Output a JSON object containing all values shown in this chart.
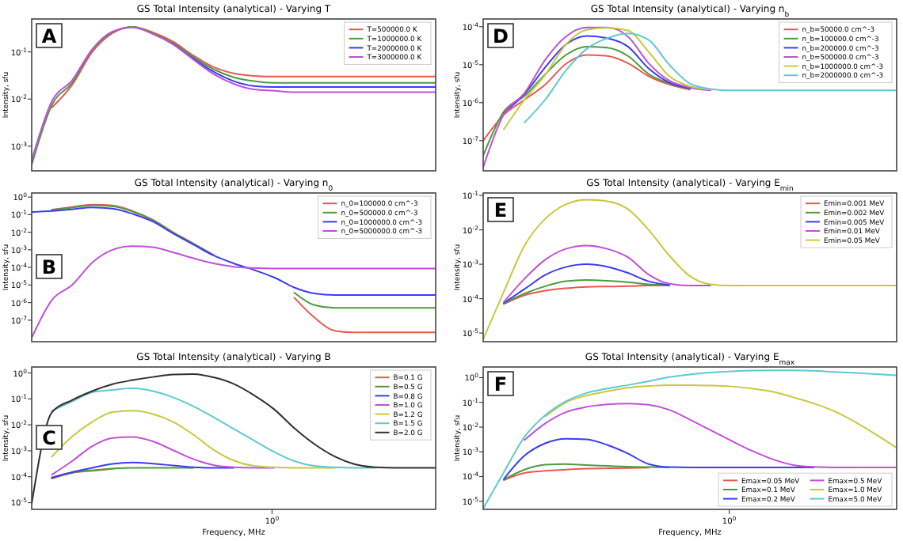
{
  "chart_data": [
    {
      "type": "line",
      "title": "GS Total Intensity (analytical) - Varying T",
      "ylabel": "Intensity, sfu",
      "annotations": [
        "A"
      ],
      "log": "y",
      "legend": "top right",
      "tick_labels": "y",
      "ylim": [
        0.0003,
        0.5
      ],
      "yticks": [
        {
          "value": 0.1,
          "label": "10$^{-1}$"
        },
        {
          "value": 0.01,
          "label": "10$^{-2}$"
        },
        {
          "value": 0.001,
          "label": "10$^{-3}$"
        }
      ],
      "categories": [
        null,
        null,
        null,
        null,
        null,
        null,
        null,
        null,
        null,
        null,
        null,
        null,
        null,
        null,
        null,
        null,
        null,
        null,
        null,
        null,
        null
      ],
      "series": [
        {
          "name": "T=500000.0 K",
          "color": "#e8584f",
          "values": [
            null,
            0.0066,
            0.02,
            0.1,
            0.25,
            0.34,
            0.26,
            0.165,
            0.084,
            0.048,
            0.035,
            0.031,
            0.03,
            0.03,
            0.03,
            0.03,
            0.03,
            0.03,
            0.03,
            0.03,
            0.03
          ]
        },
        {
          "name": "T=1000000.0 K",
          "color": "#4f9a3f",
          "values": [
            0.0004,
            0.0075,
            0.022,
            0.11,
            0.26,
            0.34,
            0.25,
            0.155,
            0.078,
            0.043,
            0.029,
            0.024,
            0.022,
            0.022,
            0.022,
            0.022,
            0.022,
            0.022,
            0.022,
            0.022,
            0.022
          ]
        },
        {
          "name": "T=2000000.0 K",
          "color": "#3c3cf0",
          "values": [
            null,
            null,
            null,
            null,
            null,
            null,
            null,
            0.148,
            0.072,
            0.038,
            0.024,
            0.019,
            0.018,
            0.018,
            0.018,
            0.018,
            0.018,
            0.018,
            0.018,
            0.018,
            0.018
          ]
        },
        {
          "name": "T=3000000.0 K",
          "color": "#c050d8",
          "values": [
            0.0005,
            0.009,
            0.025,
            0.115,
            0.27,
            0.33,
            0.24,
            0.145,
            0.069,
            0.034,
            0.021,
            0.016,
            0.015,
            0.014,
            0.014,
            0.014,
            0.014,
            0.014,
            0.014,
            0.014,
            0.014
          ]
        }
      ]
    },
    {
      "type": "line",
      "title": "GS Total Intensity (analytical) - Varying n$_{0}$",
      "ylabel": "Intensity, sfu",
      "annotations": [
        "B"
      ],
      "log": "y",
      "legend": "top right",
      "tick_labels": "y",
      "ylim": [
        6e-09,
        1.7
      ],
      "yticks": [
        {
          "value": 1,
          "label": "10$^{0}$"
        },
        {
          "value": 0.1,
          "label": "10$^{-1}$"
        },
        {
          "value": 0.01,
          "label": "10$^{-2}$"
        },
        {
          "value": 0.001,
          "label": "10$^{-3}$"
        },
        {
          "value": 0.0001,
          "label": "10$^{-4}$"
        },
        {
          "value": 1e-05,
          "label": "10$^{-5}$"
        },
        {
          "value": 1e-06,
          "label": "10$^{-6}$"
        },
        {
          "value": 1e-07,
          "label": "10$^{-7}$"
        }
      ],
      "categories": [
        null,
        null,
        null,
        null,
        null,
        null,
        null,
        null,
        null,
        null,
        null,
        null,
        null,
        null,
        null,
        null,
        null,
        null,
        null,
        null,
        null
      ],
      "series": [
        {
          "name": "n_0=100000.0 cm^-3",
          "color": "#e8584f",
          "values": [
            null,
            0.19,
            0.27,
            0.37,
            0.33,
            0.16,
            0.051,
            0.01,
            0.0023,
            0.00051,
            null,
            null,
            null,
            1.9e-06,
            1.4e-07,
            2.5e-08,
            2e-08,
            2e-08,
            2e-08,
            2e-08,
            2e-08
          ]
        },
        {
          "name": "n_0=500000.0 cm^-3",
          "color": "#4f9a3f",
          "values": [
            null,
            0.18,
            0.25,
            0.34,
            0.3,
            0.15,
            0.048,
            0.0095,
            0.0022,
            0.0005,
            null,
            null,
            null,
            3.7e-06,
            7.2e-07,
            5e-07,
            5e-07,
            5e-07,
            5e-07,
            5e-07,
            5e-07
          ]
        },
        {
          "name": "n_0=1000000.0 cm^-3",
          "color": "#3c3cf0",
          "values": [
            0.14,
            0.16,
            0.2,
            0.26,
            0.22,
            0.11,
            0.04,
            0.0085,
            0.002,
            0.00048,
            0.00017,
            7.2e-05,
            2.7e-05,
            7.2e-06,
            3.3e-06,
            2.7e-06,
            2.7e-06,
            2.7e-06,
            2.7e-06,
            2.7e-06,
            2.7e-06
          ]
        },
        {
          "name": "n_0=5000000.0 cm^-3",
          "color": "#c050d8",
          "values": [
            1e-08,
            1.4e-06,
            1e-05,
            0.00019,
            0.001,
            0.0016,
            0.0014,
            0.00072,
            0.00033,
            0.00017,
            0.00011,
            9.3e-05,
            8.7e-05,
            8.7e-05,
            8.7e-05,
            8.7e-05,
            8.7e-05,
            8.7e-05,
            8.7e-05,
            8.7e-05,
            8.7e-05
          ]
        }
      ]
    },
    {
      "type": "line",
      "title": "GS Total Intensity (analytical) - Varying B",
      "xlabel": "Frequency, MHz",
      "ylabel": "Intensity, sfu",
      "annotations": [
        "C",
        "10$^{0}$"
      ],
      "log": "y",
      "legend": "top right",
      "ylim": [
        5.5e-06,
        1.7
      ],
      "yticks": [
        {
          "value": 1,
          "label": "10$^{0}$"
        },
        {
          "value": 0.1,
          "label": "10$^{-1}$"
        },
        {
          "value": 0.01,
          "label": "10$^{-2}$"
        },
        {
          "value": 0.001,
          "label": "10$^{-3}$"
        },
        {
          "value": 0.0001,
          "label": "10$^{-4}$"
        },
        {
          "value": 1e-05,
          "label": "10$^{-5}$"
        }
      ],
      "categories": [
        null,
        null,
        null,
        null,
        null,
        null,
        null,
        null,
        null,
        null,
        null,
        null,
        null,
        null,
        null,
        null,
        null,
        null,
        null,
        null,
        null
      ],
      "series": [
        {
          "name": "B=0.1 G",
          "color": "#e8584f",
          "values": [
            null,
            8.5e-05,
            0.00014,
            0.00017,
            0.0002,
            null,
            null,
            null,
            null,
            null,
            null,
            null,
            null,
            null,
            null,
            null,
            null,
            null,
            null,
            null,
            null
          ]
        },
        {
          "name": "B=0.5 G",
          "color": "#4f9a3f",
          "values": [
            null,
            9.5e-05,
            0.000145,
            0.000175,
            0.000205,
            0.00022,
            0.00022,
            0.00022,
            0.00022,
            null,
            null,
            null,
            null,
            null,
            null,
            null,
            null,
            null,
            null,
            null,
            null
          ]
        },
        {
          "name": "B=0.8 G",
          "color": "#3c3cf0",
          "values": [
            null,
            9e-05,
            0.00015,
            0.00022,
            0.00031,
            0.00035,
            0.00032,
            0.00027,
            0.00023,
            0.00022,
            0.00022,
            null,
            null,
            null,
            null,
            null,
            null,
            null,
            null,
            null,
            null
          ]
        },
        {
          "name": "B=1.0 G",
          "color": "#c050d8",
          "values": [
            null,
            0.00012,
            0.0004,
            0.0015,
            0.0031,
            0.0034,
            0.0023,
            0.00105,
            0.00048,
            0.00028,
            0.00023,
            0.00022,
            0.00022,
            null,
            null,
            null,
            null,
            null,
            null,
            null,
            null
          ]
        },
        {
          "name": "B=1.2 G",
          "color": "#c8c840",
          "values": [
            null,
            0.0006,
            0.0035,
            0.013,
            0.031,
            0.035,
            0.026,
            0.013,
            0.0042,
            0.0011,
            0.00042,
            0.00026,
            0.00023,
            0.00022,
            0.00022,
            0.00022,
            null,
            null,
            null,
            null,
            null
          ]
        },
        {
          "name": "B=1.5 G",
          "color": "#60c8d0",
          "values": [
            null,
            0.035,
            0.08,
            0.18,
            0.22,
            0.26,
            0.2,
            0.115,
            0.052,
            0.02,
            0.007,
            0.0025,
            0.0009,
            0.0004,
            0.00026,
            0.00023,
            0.00022,
            0.00022,
            null,
            null,
            null
          ]
        },
        {
          "name": "B=2.0 G",
          "color": "#303030",
          "values": [
            9e-06,
            0.03,
            0.09,
            0.2,
            0.37,
            0.53,
            0.7,
            0.87,
            0.9,
            0.68,
            0.38,
            0.14,
            0.04,
            0.0075,
            0.0018,
            0.0006,
            0.0003,
            0.00023,
            0.00022,
            0.00022,
            0.00022
          ]
        }
      ]
    },
    {
      "type": "line",
      "title": "GS Total Intensity (analytical) - Varying n$_{b}$",
      "ylabel": "Intensity, sfu",
      "annotations": [
        "D"
      ],
      "log": "y",
      "legend": "top right",
      "tick_labels": "y",
      "ylim": [
        1.6e-08,
        0.00016
      ],
      "yticks": [
        {
          "value": 0.0001,
          "label": "10$^{-4}$"
        },
        {
          "value": 1e-05,
          "label": "10$^{-5}$"
        },
        {
          "value": 1e-06,
          "label": "10$^{-6}$"
        },
        {
          "value": 1e-07,
          "label": "10$^{-7}$"
        }
      ],
      "categories": [
        null,
        null,
        null,
        null,
        null,
        null,
        null,
        null,
        null,
        null,
        null,
        null,
        null,
        null,
        null,
        null,
        null,
        null,
        null,
        null,
        null
      ],
      "series": [
        {
          "name": "n_b=50000.0 cm^-3",
          "color": "#e8584f",
          "values": [
            1e-07,
            4.8e-07,
            1.2e-06,
            3e-06,
            1.05e-05,
            1.8e-05,
            1.7e-05,
            1.1e-05,
            5e-06,
            3e-06,
            2.2e-06,
            null,
            null,
            null,
            null,
            null,
            null,
            null,
            null,
            null,
            null
          ]
        },
        {
          "name": "n_b=100000.0 cm^-3",
          "color": "#4f9a3f",
          "values": [
            4e-08,
            5.8e-07,
            1.5e-06,
            5.6e-06,
            1.8e-05,
            3e-05,
            2.8e-05,
            1.7e-05,
            5.7e-06,
            3.2e-06,
            2.3e-06,
            null,
            null,
            null,
            null,
            null,
            null,
            null,
            null,
            null,
            null
          ]
        },
        {
          "name": "n_b=200000.0 cm^-3",
          "color": "#3c3cf0",
          "values": [
            null,
            5.5e-07,
            1.7e-06,
            8.5e-06,
            3.4e-05,
            5.7e-05,
            5e-05,
            3e-05,
            8e-06,
            3.4e-06,
            2.4e-06,
            null,
            null,
            null,
            null,
            null,
            null,
            null,
            null,
            null,
            null
          ]
        },
        {
          "name": "n_b=500000.0 cm^-3",
          "color": "#c050d8",
          "values": [
            2e-08,
            5e-07,
            1.8e-06,
            1.35e-05,
            5.5e-05,
            9.5e-05,
            9.5e-05,
            5.5e-05,
            1.1e-05,
            3.8e-06,
            2.5e-06,
            2.1e-06,
            null,
            null,
            null,
            null,
            null,
            null,
            null,
            null,
            null
          ]
        },
        {
          "name": "n_b=1000000.0 cm^-3",
          "color": "#c8c840",
          "values": [
            null,
            2e-07,
            1.2e-06,
            5.4e-06,
            3.4e-05,
            8.3e-05,
            9.3e-05,
            8e-05,
            2.2e-05,
            5e-06,
            2.7e-06,
            2.2e-06,
            null,
            null,
            null,
            null,
            null,
            null,
            null,
            null,
            null
          ]
        },
        {
          "name": "n_b=2000000.0 cm^-3",
          "color": "#60c8d0",
          "values": [
            null,
            null,
            3e-07,
            1.2e-06,
            7e-06,
            2.6e-05,
            5e-05,
            6.7e-05,
            4.5e-05,
            1e-05,
            3.2e-06,
            2.3e-06,
            2.1e-06,
            2.1e-06,
            2.1e-06,
            2.1e-06,
            2.1e-06,
            2.1e-06,
            2.1e-06,
            2.1e-06,
            2.1e-06
          ]
        }
      ]
    },
    {
      "type": "line",
      "title": "GS Total Intensity (analytical) - Varying E$_{min}$",
      "ylabel": "Intensity, sfu",
      "annotations": [
        "E"
      ],
      "log": "y",
      "legend": "top right",
      "tick_labels": "y",
      "ylim": [
        5.6e-06,
        0.118
      ],
      "yticks": [
        {
          "value": 0.1,
          "label": "10$^{-1}$"
        },
        {
          "value": 0.01,
          "label": "10$^{-2}$"
        },
        {
          "value": 0.001,
          "label": "10$^{-3}$"
        },
        {
          "value": 0.0001,
          "label": "10$^{-4}$"
        },
        {
          "value": 1e-05,
          "label": "10$^{-5}$"
        }
      ],
      "categories": [
        null,
        null,
        null,
        null,
        null,
        null,
        null,
        null,
        null,
        null,
        null,
        null,
        null,
        null,
        null,
        null,
        null,
        null,
        null,
        null,
        null
      ],
      "series": [
        {
          "name": "Emin=0.001 MeV",
          "color": "#e8584f",
          "values": [
            null,
            7e-05,
            0.000125,
            0.00017,
            0.0002,
            0.00022,
            0.000225,
            0.00023,
            0.00024,
            0.00024,
            null,
            null,
            null,
            null,
            null,
            null,
            null,
            null,
            null,
            null,
            null
          ]
        },
        {
          "name": "Emin=0.002 MeV",
          "color": "#4f9a3f",
          "values": [
            null,
            7.3e-05,
            0.00014,
            0.00023,
            0.00032,
            0.00035,
            0.00033,
            0.0003,
            0.00026,
            0.000245,
            null,
            null,
            null,
            null,
            null,
            null,
            null,
            null,
            null,
            null,
            null
          ]
        },
        {
          "name": "Emin=0.005 MeV",
          "color": "#3c3cf0",
          "values": [
            null,
            7.5e-05,
            0.00019,
            0.00049,
            0.00083,
            0.001,
            0.00085,
            0.00056,
            0.00032,
            0.00025,
            null,
            null,
            null,
            null,
            null,
            null,
            null,
            null,
            null,
            null,
            null
          ]
        },
        {
          "name": "Emin=0.01 MeV",
          "color": "#c050d8",
          "values": [
            null,
            8e-05,
            0.00038,
            0.00135,
            0.0028,
            0.0035,
            0.0028,
            0.0016,
            0.0005,
            0.00027,
            0.00024,
            0.00024,
            null,
            null,
            null,
            null,
            null,
            null,
            null,
            null,
            null
          ]
        },
        {
          "name": "Emin=0.05 MeV",
          "color": "#c8c840",
          "values": [
            6.6e-06,
            0.00016,
            0.0035,
            0.021,
            0.055,
            0.075,
            0.068,
            0.04,
            0.01,
            0.0018,
            0.00045,
            0.00026,
            0.00024,
            0.00024,
            0.00024,
            0.00024,
            0.00024,
            0.00024,
            0.00024,
            0.00024,
            0.00024
          ]
        }
      ]
    },
    {
      "type": "line",
      "title": "GS Total Intensity (analytical) - Varying E$_{max}$",
      "xlabel": "Frequency, MHz",
      "ylabel": "Intensity, sfu",
      "annotations": [
        "F",
        "10$^{0}$"
      ],
      "log": "y",
      "legend": "bottom right",
      "ylim": [
        4.7e-06,
        2.7
      ],
      "yticks": [
        {
          "value": 1,
          "label": "10$^{0}$"
        },
        {
          "value": 0.1,
          "label": "10$^{-1}$"
        },
        {
          "value": 0.01,
          "label": "10$^{-2}$"
        },
        {
          "value": 0.001,
          "label": "10$^{-3}$"
        },
        {
          "value": 0.0001,
          "label": "10$^{-4}$"
        },
        {
          "value": 1e-05,
          "label": "10$^{-5}$"
        }
      ],
      "categories": [
        null,
        null,
        null,
        null,
        null,
        null,
        null,
        null,
        null,
        null,
        null,
        null,
        null,
        null,
        null,
        null,
        null,
        null,
        null,
        null,
        null
      ],
      "series": [
        {
          "name": "Emax=0.05 MeV",
          "color": "#e8584f",
          "values": [
            null,
            7.2e-05,
            0.00014,
            0.00017,
            0.00019,
            0.00021,
            0.000215,
            0.00022,
            0.00023,
            null,
            null,
            null,
            null,
            null,
            null,
            null,
            null,
            null,
            null,
            null,
            null
          ]
        },
        {
          "name": "Emax=0.1 MeV",
          "color": "#4f9a3f",
          "values": [
            null,
            7.5e-05,
            0.00019,
            0.0003,
            0.00032,
            0.00029,
            0.00027,
            0.00025,
            0.00024,
            0.000235,
            null,
            null,
            null,
            null,
            null,
            null,
            null,
            null,
            null,
            null,
            null
          ]
        },
        {
          "name": "Emax=0.2 MeV",
          "color": "#3c3cf0",
          "values": [
            null,
            8e-05,
            0.0007,
            0.0022,
            0.0034,
            0.0032,
            0.0019,
            0.00085,
            0.00032,
            0.00024,
            0.000235,
            0.000235,
            0.000235,
            0.000235,
            0.000235,
            0.000235,
            0.000235,
            null,
            null,
            null,
            null
          ]
        },
        {
          "name": "Emax=0.5 MeV",
          "color": "#c050d8",
          "values": [
            null,
            null,
            0.003,
            0.014,
            0.04,
            0.066,
            0.083,
            0.09,
            0.08,
            0.05,
            0.02,
            0.0075,
            0.0028,
            0.0011,
            0.0005,
            0.00029,
            0.000245,
            0.000235,
            0.000235,
            0.000235,
            0.000235
          ]
        },
        {
          "name": "Emax=1.0 MeV",
          "color": "#c8c840",
          "values": [
            null,
            null,
            null,
            0.027,
            0.1,
            0.19,
            0.28,
            0.39,
            0.46,
            0.5,
            0.5,
            0.48,
            0.44,
            0.36,
            0.27,
            0.16,
            0.09,
            0.043,
            0.016,
            0.005,
            0.00145
          ]
        },
        {
          "name": "Emax=5.0 MeV",
          "color": "#60c8d0",
          "values": [
            5.1e-06,
            0.00015,
            0.004,
            0.03,
            0.11,
            0.24,
            0.36,
            0.5,
            0.72,
            1.05,
            1.35,
            1.6,
            1.8,
            1.95,
            1.97,
            1.97,
            1.9,
            1.7,
            1.55,
            1.4,
            1.25
          ]
        }
      ]
    }
  ]
}
